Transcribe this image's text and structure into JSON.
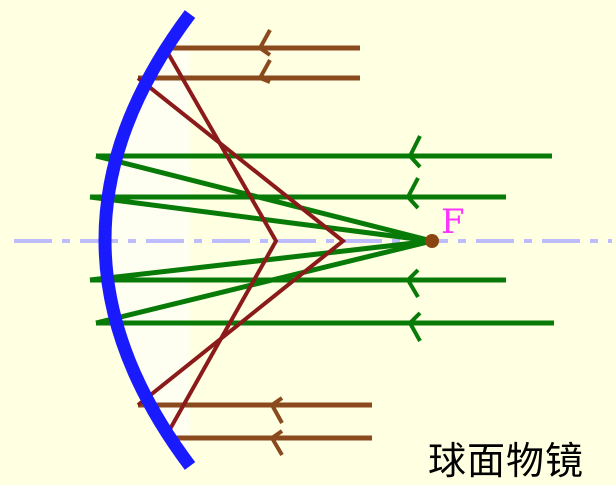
{
  "focus_label": "F",
  "caption": "球面物镜",
  "colors": {
    "background": "#ffffe1",
    "mirror": "#1a1aff",
    "mirror_fill": "#ffffff",
    "axis": "#bcbcff",
    "parallel_rays": "#087a08",
    "outer_rays": "#8a4a1e",
    "reflected_outer_rays": "#8b1a1a",
    "focus_point": "#8b4513",
    "focus_label": "#ff33ff"
  }
}
